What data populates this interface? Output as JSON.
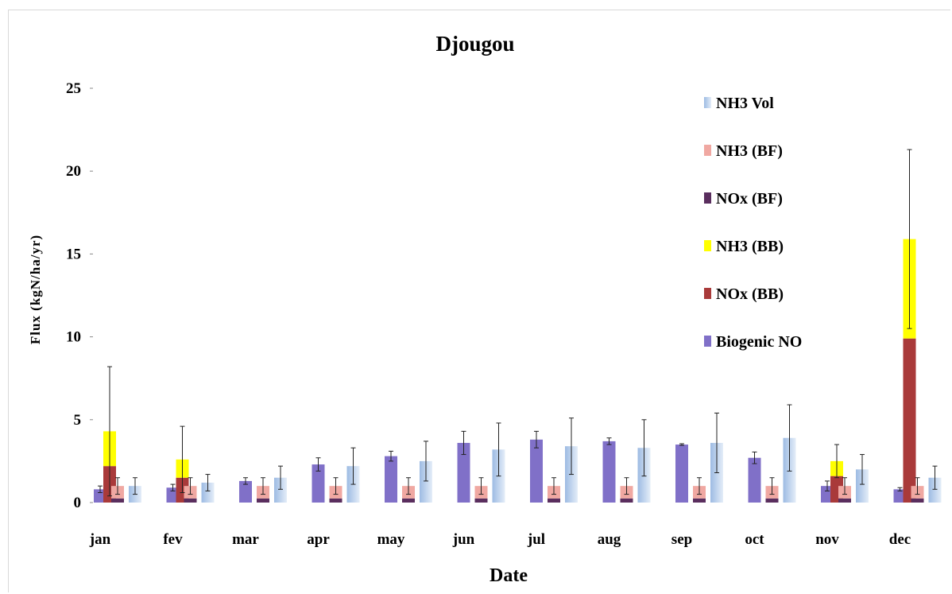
{
  "chart_data": {
    "type": "bar",
    "title": "Djougou",
    "xlabel": "Date",
    "ylabel": "Flux (kgN/ha/yr)",
    "ylim": [
      0,
      25
    ],
    "yticks": [
      "0",
      "5",
      "10",
      "15",
      "20",
      "25"
    ],
    "grid": false,
    "legend_position": "top-right",
    "categories": [
      "jan",
      "fev",
      "mar",
      "apr",
      "may",
      "jun",
      "jul",
      "aug",
      "sep",
      "oct",
      "nov",
      "dec"
    ],
    "series": [
      {
        "name": "Biogenic NO",
        "color": "#8070c8",
        "values": [
          0.8,
          0.9,
          1.3,
          2.3,
          2.8,
          3.6,
          3.8,
          3.7,
          3.5,
          2.7,
          1.0,
          0.8
        ],
        "errors": [
          0.2,
          0.2,
          0.2,
          0.4,
          0.3,
          0.7,
          0.5,
          0.2,
          0.05,
          0.35,
          0.3,
          0.1
        ]
      },
      {
        "name": "NOx (BB)",
        "color": "#a93a3a",
        "values": [
          2.2,
          1.5,
          0,
          0,
          0,
          0,
          0,
          0,
          0,
          0,
          1.6,
          9.9
        ]
      },
      {
        "name": "NH3 (BB)",
        "color": "#ffff00",
        "values": [
          2.1,
          1.1,
          0,
          0,
          0,
          0,
          0,
          0,
          0,
          0,
          0.9,
          6.0
        ],
        "errors": [
          3.9,
          2.0,
          0,
          0,
          0,
          0,
          0,
          0,
          0,
          0,
          1.0,
          5.4
        ]
      },
      {
        "name": "NOx (BF)",
        "color": "#5a2e5e",
        "values": [
          0.25,
          0.25,
          0.25,
          0.25,
          0.25,
          0.25,
          0.25,
          0.25,
          0.25,
          0.25,
          0.25,
          0.25
        ]
      },
      {
        "name": "NH3 (BF)",
        "color": "#f0a8a2",
        "values": [
          0.75,
          0.75,
          0.75,
          0.75,
          0.75,
          0.75,
          0.75,
          0.75,
          0.75,
          0.75,
          0.75,
          0.75
        ],
        "errors": [
          0.5,
          0.5,
          0.5,
          0.5,
          0.5,
          0.5,
          0.5,
          0.5,
          0.5,
          0.5,
          0.5,
          0.5
        ]
      },
      {
        "name": "NH3 Vol",
        "color": "#a8c4e6",
        "values": [
          1.0,
          1.2,
          1.5,
          2.2,
          2.5,
          3.2,
          3.4,
          3.3,
          3.6,
          3.9,
          2.0,
          1.5
        ],
        "errors": [
          0.5,
          0.5,
          0.7,
          1.1,
          1.2,
          1.6,
          1.7,
          1.7,
          1.8,
          2.0,
          0.9,
          0.7
        ]
      }
    ],
    "legend_order": [
      "NH3 Vol",
      "NH3 (BF)",
      "NOx (BF)",
      "NH3 (BB)",
      "NOx (BB)",
      "Biogenic NO"
    ]
  }
}
